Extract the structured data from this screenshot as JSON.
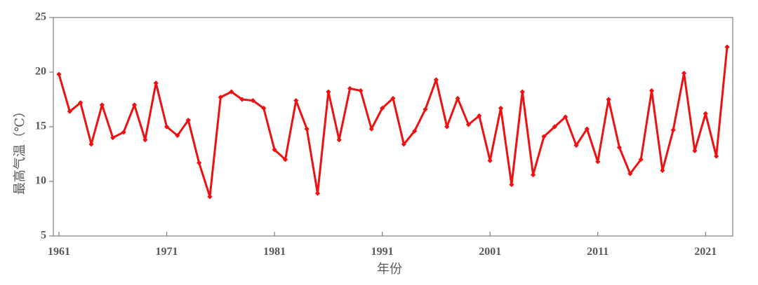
{
  "chart_data": {
    "type": "line",
    "title": "",
    "xlabel": "年份",
    "ylabel": "最高气温（℃）",
    "xlim": [
      1961,
      2023
    ],
    "ylim": [
      5,
      25
    ],
    "x_ticks": [
      1961,
      1971,
      1981,
      1991,
      2001,
      2011,
      2021
    ],
    "y_ticks": [
      5,
      10,
      15,
      20,
      25
    ],
    "grid": false,
    "legend": "none",
    "line_color": "#ee1111",
    "series": [
      {
        "x": [
          1961,
          1962,
          1963,
          1964,
          1965,
          1966,
          1967,
          1968,
          1969,
          1970,
          1971,
          1972,
          1973,
          1974,
          1975,
          1976,
          1977,
          1978,
          1979,
          1980,
          1981,
          1982,
          1983,
          1984,
          1985,
          1986,
          1987,
          1988,
          1989,
          1990,
          1991,
          1992,
          1993,
          1994,
          1995,
          1996,
          1997,
          1998,
          1999,
          2000,
          2001,
          2002,
          2003,
          2004,
          2005,
          2006,
          2007,
          2008,
          2009,
          2010,
          2011,
          2012,
          2013,
          2014,
          2015,
          2016,
          2017,
          2018,
          2019,
          2020,
          2021,
          2022,
          2023
        ],
        "values": [
          19.8,
          16.4,
          17.2,
          13.4,
          17.0,
          14.0,
          14.5,
          17.0,
          13.8,
          19.0,
          15.0,
          14.2,
          15.6,
          11.7,
          8.6,
          17.7,
          18.2,
          17.5,
          17.4,
          16.7,
          12.9,
          12.0,
          17.4,
          14.8,
          8.9,
          18.2,
          13.8,
          18.5,
          18.3,
          14.8,
          16.7,
          17.6,
          13.4,
          14.6,
          16.6,
          19.3,
          15.0,
          17.6,
          15.2,
          16.0,
          11.9,
          16.7,
          9.7,
          18.2,
          10.6,
          14.1,
          15.0,
          15.9,
          13.3,
          14.8,
          11.8,
          17.5,
          13.1,
          10.7,
          12.0,
          18.3,
          11.0,
          14.7,
          19.9,
          12.8,
          16.2,
          12.3,
          22.3
        ]
      }
    ]
  }
}
